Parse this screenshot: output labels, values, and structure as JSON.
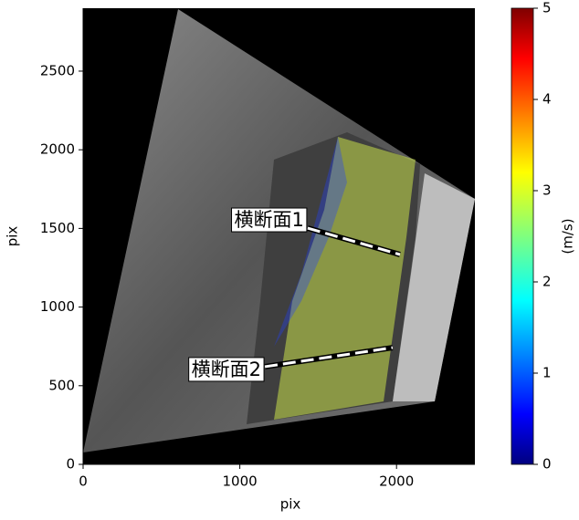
{
  "chart_data": {
    "type": "image",
    "xlabel": "pix",
    "ylabel": "pix",
    "xlim": [
      0,
      2500
    ],
    "ylim": [
      0,
      2900
    ],
    "xticks": [
      0,
      1000,
      2000
    ],
    "yticks": [
      0,
      500,
      1000,
      1500,
      2000,
      2500
    ],
    "colorbar": {
      "label": "(m/s)",
      "lim": [
        0,
        5
      ],
      "ticks": [
        0,
        1,
        2,
        3,
        4,
        5
      ]
    },
    "sections": [
      {
        "label": "横断面1",
        "x": [
          1433,
          2022
        ],
        "y": [
          1502,
          1334
        ]
      },
      {
        "label": "横断面2",
        "x": [
          1160,
          1975
        ],
        "y": [
          621,
          742
        ]
      }
    ]
  }
}
